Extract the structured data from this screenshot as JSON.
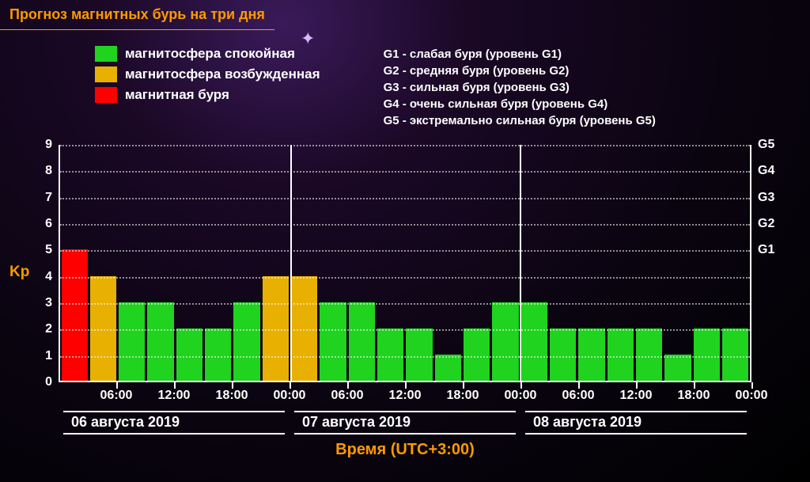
{
  "title": "Прогноз магнитных бурь на три дня",
  "legend": {
    "items": [
      {
        "color": "#1fd31f",
        "label": "магнитосфера спокойная"
      },
      {
        "color": "#e8b000",
        "label": "магнитосфера возбужденная"
      },
      {
        "color": "#ff0000",
        "label": "магнитная буря"
      }
    ]
  },
  "glevels": [
    "G1 - слабая буря (уровень G1)",
    "G2 - средняя буря (уровень G2)",
    "G3 - сильная буря (уровень G3)",
    "G4 - очень сильная буря (уровень G4)",
    "G5 - экстремально сильная буря (уровень G5)"
  ],
  "chart": {
    "type": "bar",
    "kp_label": "Kp",
    "ylim": [
      0,
      9
    ],
    "yticks": [
      0,
      1,
      2,
      3,
      4,
      5,
      6,
      7,
      8,
      9
    ],
    "right_ticks": [
      {
        "label": "G1",
        "at": 5
      },
      {
        "label": "G2",
        "at": 6
      },
      {
        "label": "G3",
        "at": 7
      },
      {
        "label": "G4",
        "at": 8
      },
      {
        "label": "G5",
        "at": 9
      }
    ],
    "grid_rows_at": [
      1,
      2,
      3,
      4,
      5,
      6,
      7,
      8,
      9
    ],
    "grid_color": "#ffffff",
    "colors": {
      "calm": "#1fd31f",
      "excited": "#e8b000",
      "storm": "#ff0000"
    },
    "bars": [
      {
        "v": 5,
        "c": "storm"
      },
      {
        "v": 4,
        "c": "excited"
      },
      {
        "v": 3,
        "c": "calm"
      },
      {
        "v": 3,
        "c": "calm"
      },
      {
        "v": 2,
        "c": "calm"
      },
      {
        "v": 2,
        "c": "calm"
      },
      {
        "v": 3,
        "c": "calm"
      },
      {
        "v": 4,
        "c": "excited"
      },
      {
        "v": 4,
        "c": "excited"
      },
      {
        "v": 3,
        "c": "calm"
      },
      {
        "v": 3,
        "c": "calm"
      },
      {
        "v": 2,
        "c": "calm"
      },
      {
        "v": 2,
        "c": "calm"
      },
      {
        "v": 1,
        "c": "calm"
      },
      {
        "v": 2,
        "c": "calm"
      },
      {
        "v": 3,
        "c": "calm"
      },
      {
        "v": 3,
        "c": "calm"
      },
      {
        "v": 2,
        "c": "calm"
      },
      {
        "v": 2,
        "c": "calm"
      },
      {
        "v": 2,
        "c": "calm"
      },
      {
        "v": 2,
        "c": "calm"
      },
      {
        "v": 1,
        "c": "calm"
      },
      {
        "v": 2,
        "c": "calm"
      },
      {
        "v": 2,
        "c": "calm"
      }
    ],
    "day_separators_at": [
      8,
      16
    ],
    "x_tick_positions": [
      1,
      3,
      5,
      7,
      9,
      11,
      13,
      15,
      17,
      19,
      21,
      23
    ],
    "x_tick_labels": [
      "06:00",
      "12:00",
      "18:00",
      "00:00",
      "06:00",
      "12:00",
      "18:00",
      "00:00",
      "06:00",
      "12:00",
      "18:00",
      "00:00"
    ],
    "days": [
      "06 августа 2019",
      "07 августа 2019",
      "08 августа 2019"
    ],
    "x_title": "Время (UTC+3:00)"
  }
}
